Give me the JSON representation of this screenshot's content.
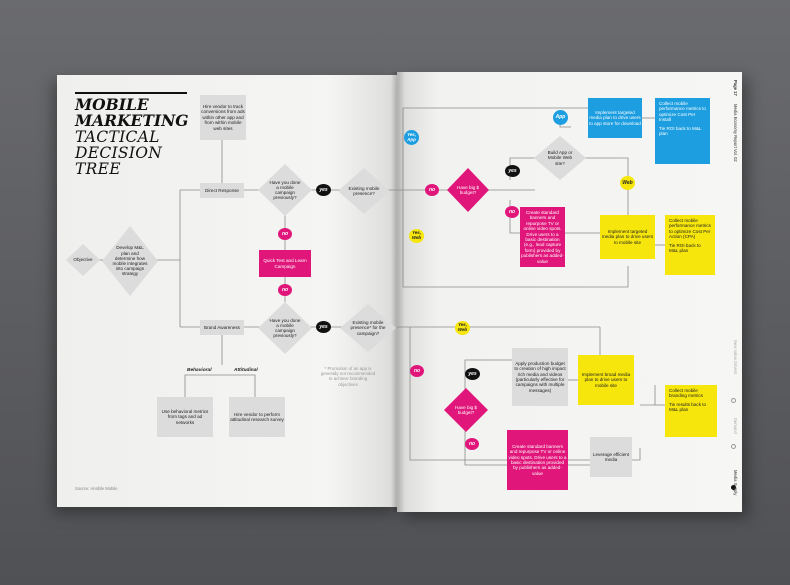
{
  "title": {
    "line1": "MOBILE",
    "line2": "MARKETING",
    "line3": "TACTICAL",
    "line4": "DECISION",
    "line5": "TREE"
  },
  "source": "Source: Ansible Mobile",
  "note": "* Promotion of an app is generally not recommended to achieve branding objectives",
  "header": {
    "report": "Media Economy Report Vol. 02",
    "page": "Page 17"
  },
  "side_nav": [
    "Media Supply",
    "Demand",
    "New Value Drivers"
  ],
  "labels": {
    "yes": "yes",
    "no": "no",
    "app": "App",
    "web": "Web",
    "yes_app": "Yes, App",
    "yes_web": "Yes, Web",
    "behavioral": "Behavioral",
    "attitudinal": "Attitudinal"
  },
  "nodes": {
    "objective": "Objective",
    "develop": "Develop M&L plan and determine how mobile integrates into campaign strategy",
    "direct_response": "Direct Response",
    "brand_awareness": "Brand Awareness",
    "hire_vendor_track": "Hire vendor to track conversions from ads within other app and from within mobile web sites",
    "campaign_q1": "Have you done a mobile campaign previously?",
    "campaign_q2": "Have you done a mobile campaign previously?",
    "quick_test": "Quick Test and Learn Campaign",
    "presence_q1": "Existing mobile presence?",
    "presence_q2": "Existing mobile presence* for the campaign?",
    "behavioral_metrics": "Use behavioral metrics from tags and ad networks",
    "attitudinal_vendor": "Hire vendor to perform attitudinal research survey",
    "big_budget_1": "Have big $ budget?",
    "big_budget_2": "Have big $ budget?",
    "build_app_q": "Build App or Mobile Web site?",
    "targeted_app": "Implement targeted media plan to drive users to app store for download",
    "app_metrics_1": "Collect mobile performance metrics to optimize Cost Per Install",
    "app_metrics_2": "Tie ROI back to M&L plan",
    "standard_banners_1": "Create standard banners and repurpose TV or online video spots. Drive users to a basic destination (e.g., lead capture form) provided by publishers as added-value",
    "targeted_site": "Implement targeted media plan to drive users to mobile site",
    "site_metrics_1": "Collect mobile performance metrics to optimize Cost Per Action (CPA)",
    "site_metrics_2": "Tie ROI back to M&L plan",
    "production_budget": "Apply production budget to creation of high impact rich media and videos (particularly effective for campaigns with multiple messages)",
    "broad_media": "Implement broad media plan to drive users to mobile site",
    "branding_metrics_1": "Collect mobile branding metrics",
    "branding_metrics_2": "Tie results back to M&L plan",
    "standard_banners_2": "Create standard banners and repurpose TV or online video spots. Drive users to a basic destination provided by publishers as added-value",
    "leverage_media": "Leverage efficient media"
  },
  "colors": {
    "magenta": "#e0167a",
    "yellow": "#f6e60c",
    "blue": "#1d9ee1",
    "gray": "#dcdcdc",
    "black": "#111111"
  }
}
